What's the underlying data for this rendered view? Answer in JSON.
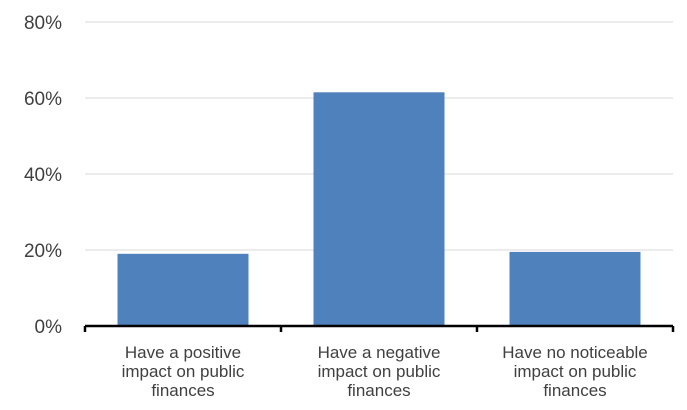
{
  "chart_data": {
    "type": "bar",
    "categories": [
      [
        "Have a positive",
        "impact on public",
        "finances"
      ],
      [
        "Have a negative",
        "impact on public",
        "finances"
      ],
      [
        "Have no noticeable",
        "impact on public",
        "finances"
      ]
    ],
    "values": [
      19,
      61.5,
      19.5
    ],
    "ylim": [
      0,
      80
    ],
    "yticks": [
      0,
      20,
      40,
      60,
      80
    ],
    "ytick_labels": [
      "0%",
      "20%",
      "40%",
      "60%",
      "80%"
    ],
    "title": "",
    "xlabel": "",
    "ylabel": "",
    "grid": true,
    "colors": {
      "bar": "#4f81bd",
      "grid": "#d9d9d9",
      "axis": "#000000",
      "text": "#404040"
    }
  }
}
